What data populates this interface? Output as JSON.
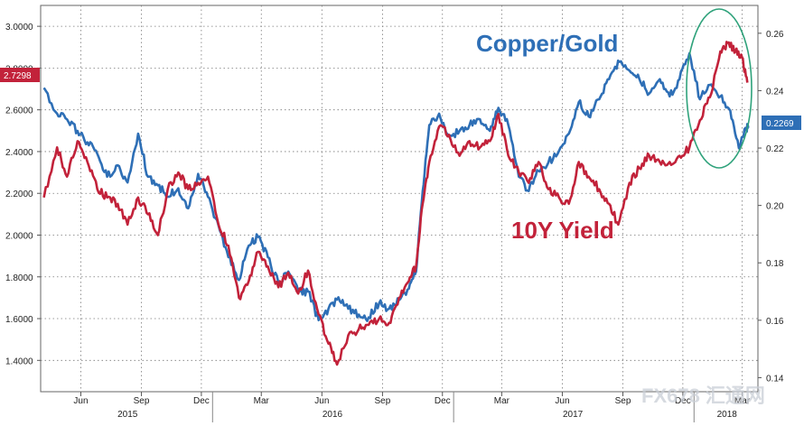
{
  "chart_data": {
    "type": "line",
    "title": "",
    "xlabel": "",
    "ylabel": "",
    "x_ticks": [
      "Jun",
      "Sep",
      "Dec",
      "Mar",
      "Jun",
      "Sep",
      "Dec",
      "Mar",
      "Jun",
      "Sep",
      "Dec",
      "Mar"
    ],
    "years": [
      "2015",
      "2016",
      "2017",
      "2018"
    ],
    "y_left": {
      "range": [
        1.25,
        3.1
      ],
      "ticks": [
        "1.4000",
        "1.6000",
        "1.8000",
        "2.0000",
        "2.2000",
        "2.4000",
        "2.6000",
        "2.8000",
        "3.0000"
      ]
    },
    "y_right": {
      "range": [
        0.1351,
        0.2697
      ],
      "ticks": [
        "0.14",
        "0.16",
        "0.18",
        "0.20",
        "0.22",
        "0.24",
        "0.26"
      ]
    },
    "grid": true,
    "series": [
      {
        "name": "10Y Yield",
        "axis": "left",
        "color": "#c2223a",
        "last_value": "2.7298",
        "x": [
          "2015-04-20",
          "2015-05-10",
          "2015-05-25",
          "2015-06-10",
          "2015-06-25",
          "2015-07-10",
          "2015-07-25",
          "2015-08-10",
          "2015-08-25",
          "2015-09-10",
          "2015-09-25",
          "2015-10-10",
          "2015-10-25",
          "2015-11-10",
          "2015-11-25",
          "2015-12-10",
          "2015-12-25",
          "2016-01-10",
          "2016-01-25",
          "2016-02-10",
          "2016-02-25",
          "2016-03-10",
          "2016-03-25",
          "2016-04-10",
          "2016-04-25",
          "2016-05-10",
          "2016-05-25",
          "2016-06-10",
          "2016-06-25",
          "2016-07-08",
          "2016-07-25",
          "2016-08-10",
          "2016-08-25",
          "2016-09-10",
          "2016-09-25",
          "2016-10-10",
          "2016-10-25",
          "2016-11-05",
          "2016-11-15",
          "2016-11-25",
          "2016-12-10",
          "2016-12-25",
          "2017-01-10",
          "2017-01-25",
          "2017-02-10",
          "2017-02-25",
          "2017-03-10",
          "2017-03-25",
          "2017-04-10",
          "2017-04-25",
          "2017-05-10",
          "2017-05-25",
          "2017-06-10",
          "2017-06-25",
          "2017-07-10",
          "2017-07-25",
          "2017-08-10",
          "2017-08-25",
          "2017-09-08",
          "2017-09-25",
          "2017-10-10",
          "2017-10-25",
          "2017-11-10",
          "2017-11-25",
          "2017-12-10",
          "2017-12-25",
          "2018-01-10",
          "2018-01-25",
          "2018-02-10",
          "2018-02-21",
          "2018-03-05",
          "2018-03-15",
          "2018-03-23"
        ],
        "values": [
          2.18,
          2.42,
          2.28,
          2.45,
          2.35,
          2.22,
          2.18,
          2.15,
          2.05,
          2.18,
          2.1,
          2.0,
          2.22,
          2.3,
          2.22,
          2.25,
          2.28,
          2.05,
          1.95,
          1.7,
          1.78,
          1.92,
          1.85,
          1.75,
          1.82,
          1.72,
          1.83,
          1.62,
          1.48,
          1.38,
          1.52,
          1.55,
          1.57,
          1.6,
          1.58,
          1.7,
          1.78,
          1.85,
          2.15,
          2.35,
          2.52,
          2.48,
          2.38,
          2.45,
          2.42,
          2.45,
          2.58,
          2.38,
          2.3,
          2.25,
          2.35,
          2.22,
          2.18,
          2.15,
          2.35,
          2.28,
          2.22,
          2.15,
          2.05,
          2.25,
          2.32,
          2.38,
          2.35,
          2.35,
          2.38,
          2.42,
          2.55,
          2.66,
          2.88,
          2.92,
          2.88,
          2.85,
          2.73
        ]
      },
      {
        "name": "Copper/Gold",
        "axis": "right",
        "color": "#2e6fb6",
        "last_value": "0.2269",
        "x": [
          "2015-04-20",
          "2015-05-10",
          "2015-05-25",
          "2015-06-10",
          "2015-06-25",
          "2015-07-10",
          "2015-07-25",
          "2015-08-10",
          "2015-08-25",
          "2015-09-10",
          "2015-09-25",
          "2015-10-10",
          "2015-10-25",
          "2015-11-10",
          "2015-11-25",
          "2015-12-10",
          "2015-12-25",
          "2016-01-10",
          "2016-01-25",
          "2016-02-10",
          "2016-02-25",
          "2016-03-10",
          "2016-03-25",
          "2016-04-10",
          "2016-04-25",
          "2016-05-10",
          "2016-05-25",
          "2016-06-10",
          "2016-06-25",
          "2016-07-10",
          "2016-07-25",
          "2016-08-10",
          "2016-08-25",
          "2016-09-10",
          "2016-09-25",
          "2016-10-10",
          "2016-10-25",
          "2016-11-05",
          "2016-11-15",
          "2016-11-25",
          "2016-12-10",
          "2016-12-25",
          "2017-01-10",
          "2017-01-25",
          "2017-02-10",
          "2017-02-25",
          "2017-03-10",
          "2017-03-25",
          "2017-04-10",
          "2017-04-25",
          "2017-05-10",
          "2017-05-25",
          "2017-06-10",
          "2017-06-25",
          "2017-07-10",
          "2017-07-25",
          "2017-08-10",
          "2017-08-25",
          "2017-09-10",
          "2017-09-25",
          "2017-10-10",
          "2017-10-25",
          "2017-11-10",
          "2017-11-25",
          "2017-12-10",
          "2017-12-25",
          "2018-01-10",
          "2018-01-25",
          "2018-02-10",
          "2018-02-25",
          "2018-03-10",
          "2018-03-20",
          "2018-03-25"
        ],
        "values": [
          0.241,
          0.232,
          0.23,
          0.226,
          0.222,
          0.218,
          0.21,
          0.214,
          0.208,
          0.225,
          0.21,
          0.207,
          0.203,
          0.206,
          0.199,
          0.211,
          0.203,
          0.193,
          0.182,
          0.174,
          0.186,
          0.189,
          0.182,
          0.173,
          0.177,
          0.17,
          0.17,
          0.16,
          0.164,
          0.168,
          0.164,
          0.162,
          0.161,
          0.166,
          0.164,
          0.167,
          0.171,
          0.177,
          0.205,
          0.228,
          0.232,
          0.224,
          0.226,
          0.228,
          0.23,
          0.226,
          0.234,
          0.228,
          0.21,
          0.205,
          0.212,
          0.215,
          0.219,
          0.225,
          0.236,
          0.231,
          0.237,
          0.244,
          0.25,
          0.247,
          0.244,
          0.239,
          0.244,
          0.238,
          0.244,
          0.253,
          0.237,
          0.242,
          0.238,
          0.233,
          0.22,
          0.227,
          0.227
        ]
      }
    ]
  },
  "watermark": "FX678 汇通网"
}
